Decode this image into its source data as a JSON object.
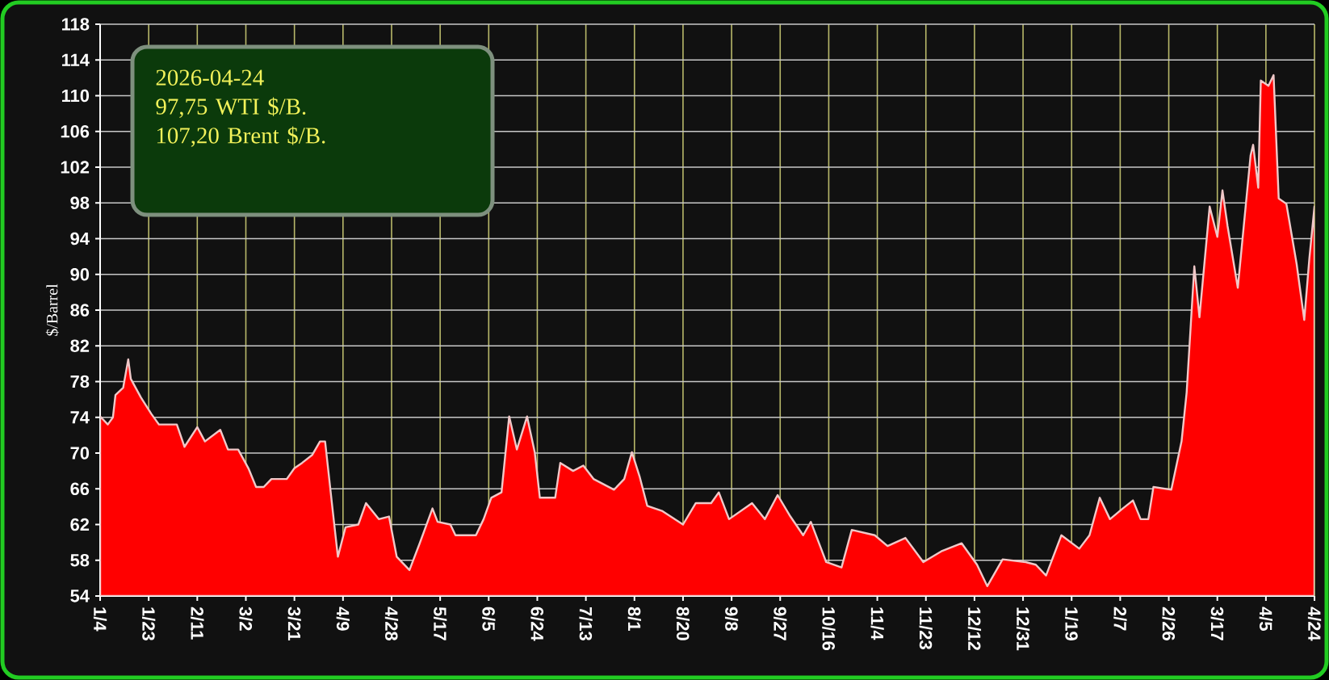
{
  "chart_data": {
    "type": "area",
    "ylabel": "$/Barrel",
    "annotations": [
      "2026-04-24",
      "97,75 WTI  $/B.",
      "107,20 Brent $/B."
    ],
    "xlim": [
      "2025-01-04",
      "2026-04-24"
    ],
    "ylim": [
      54,
      118
    ],
    "yticks": [
      54,
      58,
      62,
      66,
      70,
      74,
      78,
      82,
      86,
      90,
      94,
      98,
      102,
      106,
      110,
      114,
      118
    ],
    "xticks": [
      {
        "value": "2025-01-04",
        "label": "1/4"
      },
      {
        "value": "2025-01-23",
        "label": "1/23"
      },
      {
        "value": "2025-02-11",
        "label": "2/11"
      },
      {
        "value": "2025-03-02",
        "label": "3/2"
      },
      {
        "value": "2025-03-21",
        "label": "3/21"
      },
      {
        "value": "2025-04-09",
        "label": "4/9"
      },
      {
        "value": "2025-04-28",
        "label": "4/28"
      },
      {
        "value": "2025-05-17",
        "label": "5/17"
      },
      {
        "value": "2025-06-05",
        "label": "6/5"
      },
      {
        "value": "2025-06-24",
        "label": "6/24"
      },
      {
        "value": "2025-07-13",
        "label": "7/13"
      },
      {
        "value": "2025-08-01",
        "label": "8/1"
      },
      {
        "value": "2025-08-20",
        "label": "8/20"
      },
      {
        "value": "2025-09-08",
        "label": "9/8"
      },
      {
        "value": "2025-09-27",
        "label": "9/27"
      },
      {
        "value": "2025-10-16",
        "label": "10/16"
      },
      {
        "value": "2025-11-04",
        "label": "11/4"
      },
      {
        "value": "2025-11-23",
        "label": "11/23"
      },
      {
        "value": "2025-12-12",
        "label": "12/12"
      },
      {
        "value": "2025-12-31",
        "label": "12/31"
      },
      {
        "value": "2026-01-19",
        "label": "1/19"
      },
      {
        "value": "2026-02-07",
        "label": "2/7"
      },
      {
        "value": "2026-02-26",
        "label": "2/26"
      },
      {
        "value": "2026-03-17",
        "label": "3/17"
      },
      {
        "value": "2026-04-05",
        "label": "4/5"
      },
      {
        "value": "2026-04-24",
        "label": "4/24"
      }
    ],
    "grid": true,
    "x": [
      "2025-01-04",
      "2025-01-07",
      "2025-01-09",
      "2025-01-10",
      "2025-01-13",
      "2025-01-15",
      "2025-01-16",
      "2025-01-20",
      "2025-01-24",
      "2025-01-27",
      "2025-02-03",
      "2025-02-06",
      "2025-02-11",
      "2025-02-14",
      "2025-02-20",
      "2025-02-23",
      "2025-02-27",
      "2025-03-03",
      "2025-03-06",
      "2025-03-09",
      "2025-03-12",
      "2025-03-18",
      "2025-03-21",
      "2025-03-24",
      "2025-03-28",
      "2025-03-31",
      "2025-04-02",
      "2025-04-05",
      "2025-04-07",
      "2025-04-10",
      "2025-04-15",
      "2025-04-18",
      "2025-04-23",
      "2025-04-27",
      "2025-04-30",
      "2025-05-05",
      "2025-05-09",
      "2025-05-14",
      "2025-05-16",
      "2025-05-21",
      "2025-05-23",
      "2025-05-31",
      "2025-06-03",
      "2025-06-06",
      "2025-06-10",
      "2025-06-13",
      "2025-06-16",
      "2025-06-20",
      "2025-06-23",
      "2025-06-25",
      "2025-07-01",
      "2025-07-03",
      "2025-07-08",
      "2025-07-12",
      "2025-07-16",
      "2025-07-24",
      "2025-07-28",
      "2025-07-31",
      "2025-08-03",
      "2025-08-06",
      "2025-08-12",
      "2025-08-20",
      "2025-08-25",
      "2025-08-31",
      "2025-09-03",
      "2025-09-07",
      "2025-09-16",
      "2025-09-21",
      "2025-09-26",
      "2025-10-01",
      "2025-10-06",
      "2025-10-09",
      "2025-10-15",
      "2025-10-21",
      "2025-10-25",
      "2025-11-03",
      "2025-11-08",
      "2025-11-15",
      "2025-11-22",
      "2025-11-29",
      "2025-12-07",
      "2025-12-13",
      "2025-12-17",
      "2025-12-23",
      "2026-01-01",
      "2026-01-05",
      "2026-01-09",
      "2026-01-15",
      "2026-01-22",
      "2026-01-26",
      "2026-01-30",
      "2026-02-03",
      "2026-02-08",
      "2026-02-12",
      "2026-02-15",
      "2026-02-18",
      "2026-02-20",
      "2026-02-27",
      "2026-03-03",
      "2026-03-05",
      "2026-03-08",
      "2026-03-10",
      "2026-03-14",
      "2026-03-17",
      "2026-03-19",
      "2026-03-21",
      "2026-03-25",
      "2026-03-30",
      "2026-03-31",
      "2026-04-02",
      "2026-04-03",
      "2026-04-06",
      "2026-04-08",
      "2026-04-10",
      "2026-04-13",
      "2026-04-17",
      "2026-04-20",
      "2026-04-22",
      "2026-04-24"
    ],
    "series": [
      {
        "color": "#ff0000",
        "values": [
          74.1,
          73.2,
          74,
          76.5,
          77.3,
          80.5,
          78.3,
          76.2,
          74.4,
          73.2,
          73.2,
          70.7,
          72.9,
          71.3,
          72.6,
          70.4,
          70.4,
          68.3,
          66.2,
          66.2,
          67.1,
          67.1,
          68.3,
          68.9,
          69.8,
          71.3,
          71.3,
          63.5,
          58.4,
          61.7,
          62,
          64.4,
          62.6,
          62.9,
          58.4,
          56.9,
          59.9,
          63.8,
          62.3,
          62,
          60.8,
          60.8,
          62.6,
          65,
          65.6,
          74.1,
          70.4,
          74.1,
          70.1,
          65,
          65,
          68.9,
          68,
          68.6,
          67.1,
          65.9,
          67.1,
          70.1,
          67.4,
          64.1,
          63.5,
          62,
          64.4,
          64.4,
          65.6,
          62.6,
          64.4,
          62.6,
          65.3,
          62.9,
          60.8,
          62.3,
          57.8,
          57.2,
          61.4,
          60.8,
          59.6,
          60.5,
          57.8,
          59,
          59.9,
          57.5,
          55.1,
          58.1,
          57.8,
          57.5,
          56.3,
          60.8,
          59.3,
          60.8,
          65,
          62.6,
          63.8,
          64.7,
          62.6,
          62.6,
          66.2,
          65.9,
          71.3,
          76.8,
          90.9,
          85.2,
          97.6,
          94.2,
          99.4,
          95.4,
          88.5,
          103.3,
          104.5,
          99.7,
          111.7,
          111.1,
          112.3,
          98.5,
          97.9,
          91.2,
          84.9,
          91.8,
          97.6
        ]
      }
    ]
  }
}
